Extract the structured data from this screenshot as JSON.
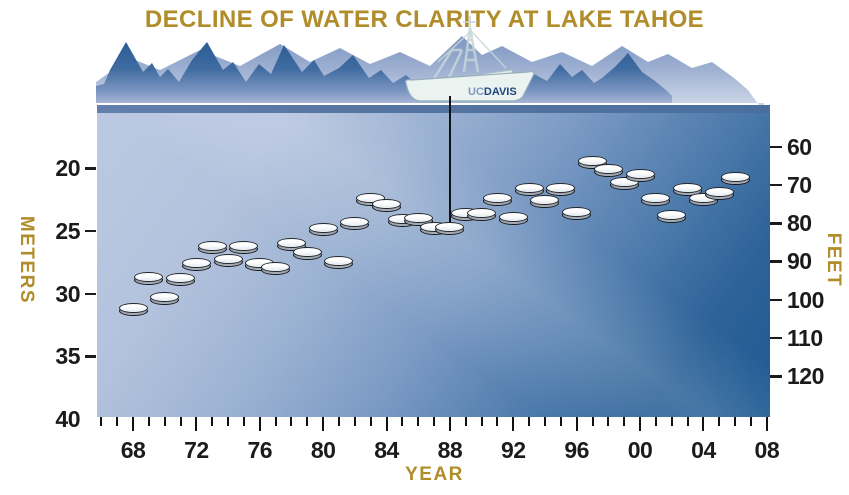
{
  "title": "DECLINE OF WATER CLARITY AT LAKE TAHOE",
  "boat": {
    "label_uc": "UC",
    "label_davis": "DAVIS"
  },
  "axes": {
    "left": {
      "label": "METERS",
      "ticks": [
        20,
        25,
        30,
        35,
        40
      ]
    },
    "right": {
      "label": "FEET",
      "ticks": [
        60,
        70,
        80,
        90,
        100,
        110,
        120
      ]
    },
    "x": {
      "label": "YEAR",
      "tick_labels": [
        "68",
        "72",
        "76",
        "80",
        "84",
        "88",
        "92",
        "96",
        "00",
        "04",
        "08"
      ],
      "first_minor_year": 1966,
      "last_minor_year": 2008
    }
  },
  "colors": {
    "accent_gold": "#b08d2a",
    "water_light": "#bcc9e2",
    "water_deep": "#1d5b93",
    "surface_strip": "#4f72a1",
    "mountain_front_dark": "#2a5e94",
    "mountain_back_light": "#93a8cc",
    "disk_face": "#ffffff",
    "davis_navy": "#1d4380"
  },
  "chart_data": {
    "type": "scatter",
    "title": "DECLINE OF WATER CLARITY AT LAKE TAHOE",
    "xlabel": "YEAR",
    "ylabel_left": "METERS",
    "ylabel_right": "FEET",
    "marker": "secchi-disk",
    "y_axis_inverted": true,
    "ylim_meters": [
      15,
      40
    ],
    "xlim_years": [
      1966,
      2008
    ],
    "grid": false,
    "x_years": [
      1968,
      1969,
      1970,
      1971,
      1972,
      1973,
      1974,
      1975,
      1976,
      1977,
      1978,
      1979,
      1980,
      1981,
      1982,
      1983,
      1984,
      1985,
      1986,
      1987,
      1988,
      1989,
      1990,
      1991,
      1992,
      1993,
      1994,
      1995,
      1996,
      1997,
      1998,
      1999,
      2000,
      2001,
      2002,
      2003,
      2004,
      2005,
      2006
    ],
    "secchi_depth_m": [
      31.3,
      28.8,
      30.4,
      28.9,
      27.7,
      26.3,
      27.4,
      26.3,
      27.7,
      28.0,
      26.1,
      26.8,
      24.9,
      27.5,
      24.4,
      22.5,
      23.0,
      24.2,
      24.1,
      24.8,
      24.8,
      23.7,
      23.7,
      22.5,
      24.0,
      21.7,
      22.7,
      21.7,
      23.6,
      19.6,
      20.2,
      21.2,
      20.6,
      22.5,
      23.9,
      21.7,
      22.5,
      22.0,
      20.8
    ],
    "annotation_line_year": 1988
  }
}
